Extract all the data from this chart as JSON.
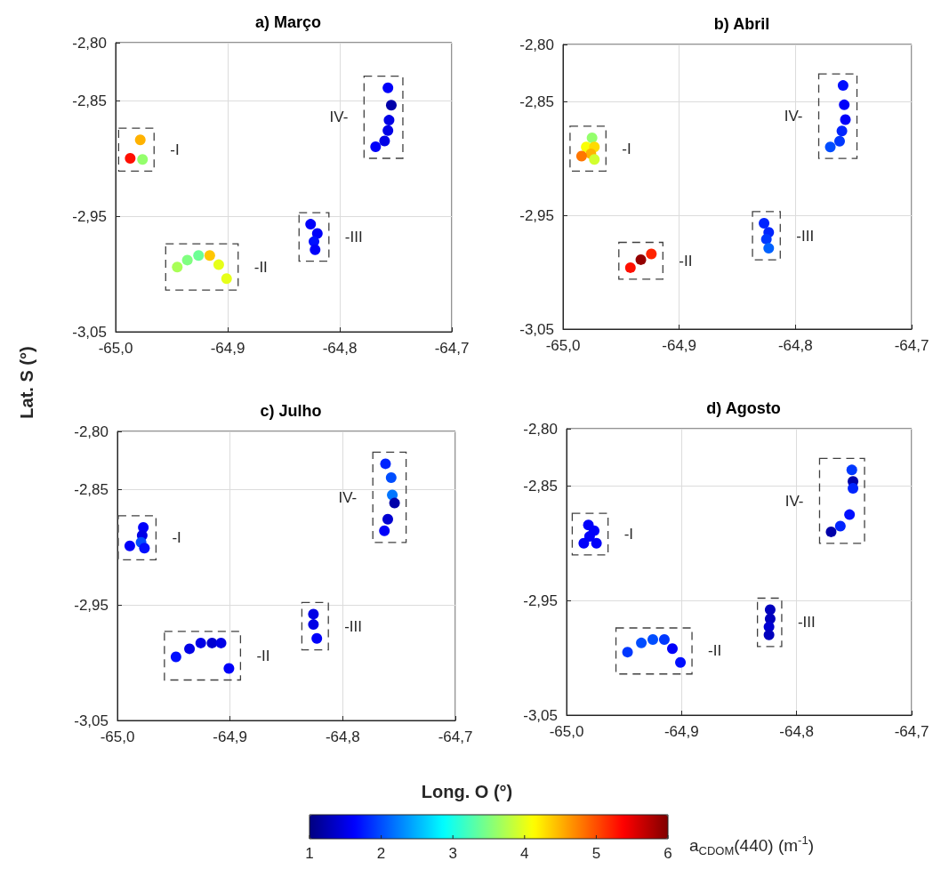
{
  "chart_data": [
    {
      "type": "scatter",
      "title": "a) Março",
      "xlabel": "Long. O (°)",
      "ylabel": "Lat. S (°)",
      "grid": true,
      "marker": "circle",
      "xlim": [
        -65,
        -64.7
      ],
      "ylim": [
        -3.05,
        -2.8
      ],
      "xticks": [
        {
          "value": -65,
          "label": "-65,0"
        },
        {
          "value": -64.9,
          "label": "-64,9"
        },
        {
          "value": -64.8,
          "label": "-64,8"
        },
        {
          "value": -64.7,
          "label": "-64,7"
        }
      ],
      "yticks": [
        {
          "value": -2.8,
          "label": "-2,80"
        },
        {
          "value": -2.85,
          "label": "-2,85"
        },
        {
          "value": -2.95,
          "label": "-2,95"
        },
        {
          "value": -3.05,
          "label": "-3,05"
        }
      ],
      "series": [
        {
          "x": [
            -64.978,
            -64.987,
            -64.976
          ],
          "values": [
            -2.884,
            -2.9,
            -2.901
          ],
          "colors": [
            "#ffb200",
            "#ff0f00",
            "#94ff6c"
          ]
        },
        {
          "x": [
            -64.945,
            -64.936,
            -64.926,
            -64.916,
            -64.908,
            -64.901
          ],
          "values": [
            -2.994,
            -2.988,
            -2.984,
            -2.984,
            -2.992,
            -3.004
          ],
          "colors": [
            "#a9ff57",
            "#80ff80",
            "#6cff94",
            "#ffc700",
            "#e6ff1a",
            "#e6ff1a"
          ]
        },
        {
          "x": [
            -64.826,
            -64.82,
            -64.823,
            -64.822
          ],
          "values": [
            -2.957,
            -2.965,
            -2.972,
            -2.979
          ],
          "colors": [
            "#0000fa",
            "#0000fa",
            "#000fff",
            "#0000fa"
          ]
        },
        {
          "x": [
            -64.757,
            -64.754,
            -64.756,
            -64.757,
            -64.76,
            -64.768
          ],
          "values": [
            -2.839,
            -2.854,
            -2.867,
            -2.876,
            -2.885,
            -2.89
          ],
          "colors": [
            "#0000fa",
            "#0000a9",
            "#0000e6",
            "#0000e6",
            "#0000e6",
            "#0000fa"
          ]
        }
      ],
      "annotations": [
        "-I",
        "-II",
        "-III",
        "IV-"
      ]
    },
    {
      "type": "scatter",
      "title": "b) Abril",
      "grid": true,
      "marker": "circle",
      "xlim": [
        -65,
        -64.7
      ],
      "ylim": [
        -3.05,
        -2.8
      ],
      "xticks": [
        {
          "value": -65,
          "label": "-65,0"
        },
        {
          "value": -64.9,
          "label": "-64,9"
        },
        {
          "value": -64.8,
          "label": "-64,8"
        },
        {
          "value": -64.7,
          "label": "-64,7"
        }
      ],
      "yticks": [
        {
          "value": -2.8,
          "label": "-2,80"
        },
        {
          "value": -2.85,
          "label": "-2,85"
        },
        {
          "value": -2.95,
          "label": "-2,95"
        },
        {
          "value": -3.05,
          "label": "-3,05"
        }
      ],
      "series": [
        {
          "x": [
            -64.975,
            -64.98,
            -64.973,
            -64.976,
            -64.984,
            -64.973
          ],
          "values": [
            -2.882,
            -2.89,
            -2.89,
            -2.896,
            -2.898,
            -2.901
          ],
          "colors": [
            "#94ff6c",
            "#faff05",
            "#ffdb00",
            "#ffb200",
            "#ff7600",
            "#d2ff2e"
          ]
        },
        {
          "x": [
            -64.942,
            -64.933,
            -64.924
          ],
          "values": [
            -2.996,
            -2.989,
            -2.984
          ],
          "colors": [
            "#ff0f00",
            "#940000",
            "#ff2400"
          ]
        },
        {
          "x": [
            -64.827,
            -64.823,
            -64.825,
            -64.823
          ],
          "values": [
            -2.957,
            -2.965,
            -2.971,
            -2.979
          ],
          "colors": [
            "#0024ff",
            "#0024ff",
            "#0038ff",
            "#0061ff"
          ]
        },
        {
          "x": [
            -64.759,
            -64.758,
            -64.757,
            -64.76,
            -64.762,
            -64.77
          ],
          "values": [
            -2.836,
            -2.853,
            -2.866,
            -2.876,
            -2.885,
            -2.89
          ],
          "colors": [
            "#000fff",
            "#0000fa",
            "#0000fa",
            "#0024ff",
            "#0038ff",
            "#004dff"
          ]
        }
      ],
      "annotations": [
        "-I",
        "-II",
        "-III",
        "IV-"
      ]
    },
    {
      "type": "scatter",
      "title": "c) Julho",
      "grid": true,
      "marker": "circle",
      "xlim": [
        -65,
        -64.7
      ],
      "ylim": [
        -3.05,
        -2.8
      ],
      "xticks": [
        {
          "value": -65,
          "label": "-65,0"
        },
        {
          "value": -64.9,
          "label": "-64,9"
        },
        {
          "value": -64.8,
          "label": "-64,8"
        },
        {
          "value": -64.7,
          "label": "-64,7"
        }
      ],
      "yticks": [
        {
          "value": -2.8,
          "label": "-2,80"
        },
        {
          "value": -2.85,
          "label": "-2,85"
        },
        {
          "value": -2.95,
          "label": "-2,95"
        },
        {
          "value": -3.05,
          "label": "-3,05"
        }
      ],
      "series": [
        {
          "x": [
            -64.977,
            -64.978,
            -64.979,
            -64.989,
            -64.976
          ],
          "values": [
            -2.883,
            -2.89,
            -2.896,
            -2.899,
            -2.901
          ],
          "colors": [
            "#0000fa",
            "#0000e6",
            "#004dff",
            "#0000fa",
            "#000fff"
          ]
        },
        {
          "x": [
            -64.948,
            -64.936,
            -64.926,
            -64.916,
            -64.908,
            -64.901
          ],
          "values": [
            -2.995,
            -2.988,
            -2.983,
            -2.983,
            -2.983,
            -3.005
          ],
          "colors": [
            "#000fff",
            "#0000e6",
            "#0000e6",
            "#0000d1",
            "#0000e6",
            "#0000fa"
          ]
        },
        {
          "x": [
            -64.826,
            -64.826,
            -64.823
          ],
          "values": [
            -2.958,
            -2.967,
            -2.979
          ],
          "colors": [
            "#0000e6",
            "#0000e6",
            "#0000fa"
          ]
        },
        {
          "x": [
            -64.762,
            -64.757,
            -64.756,
            -64.754,
            -64.76,
            -64.763
          ],
          "values": [
            -2.828,
            -2.84,
            -2.855,
            -2.862,
            -2.876,
            -2.886
          ],
          "colors": [
            "#0024ff",
            "#004dff",
            "#0076ff",
            "#0000a9",
            "#0000d1",
            "#0000fa"
          ]
        }
      ],
      "annotations": [
        "-I",
        "-II",
        "-III",
        "IV-"
      ]
    },
    {
      "type": "scatter",
      "title": "d) Agosto",
      "clabel": "a$_{CDOM}$(440) (m$^{-1}$)",
      "clim": [
        1,
        6
      ],
      "cticks": [
        1,
        2,
        3,
        4,
        5,
        6
      ],
      "grid": true,
      "marker": "circle",
      "xlim": [
        -65,
        -64.7
      ],
      "ylim": [
        -3.05,
        -2.8
      ],
      "xticks": [
        {
          "value": -65,
          "label": "-65,0"
        },
        {
          "value": -64.9,
          "label": "-64,9"
        },
        {
          "value": -64.8,
          "label": "-64,8"
        },
        {
          "value": -64.7,
          "label": "-64,7"
        }
      ],
      "yticks": [
        {
          "value": -2.8,
          "label": "-2,80"
        },
        {
          "value": -2.85,
          "label": "-2,85"
        },
        {
          "value": -2.95,
          "label": "-2,95"
        },
        {
          "value": -3.05,
          "label": "-3,05"
        }
      ],
      "series": [
        {
          "x": [
            -64.981,
            -64.976,
            -64.98,
            -64.985,
            -64.974
          ],
          "values": [
            -2.884,
            -2.889,
            -2.894,
            -2.9,
            -2.9
          ],
          "colors": [
            "#0000fa",
            "#0000fa",
            "#0000fa",
            "#0000fa",
            "#0000fa"
          ]
        },
        {
          "x": [
            -64.947,
            -64.935,
            -64.925,
            -64.915,
            -64.908,
            -64.901
          ],
          "values": [
            -2.995,
            -2.987,
            -2.984,
            -2.984,
            -2.992,
            -3.004
          ],
          "colors": [
            "#0038ff",
            "#004dff",
            "#004dff",
            "#0038ff",
            "#0000fa",
            "#000fff"
          ]
        },
        {
          "x": [
            -64.823,
            -64.823,
            -64.824,
            -64.824
          ],
          "values": [
            -2.958,
            -2.966,
            -2.973,
            -2.98
          ],
          "colors": [
            "#0000bd",
            "#0000bd",
            "#0000d1",
            "#0000bd"
          ]
        },
        {
          "x": [
            -64.752,
            -64.751,
            -64.751,
            -64.754,
            -64.762,
            -64.77
          ],
          "values": [
            -2.836,
            -2.846,
            -2.852,
            -2.875,
            -2.885,
            -2.89
          ],
          "colors": [
            "#0038ff",
            "#0000a9",
            "#0024ff",
            "#000fff",
            "#0024ff",
            "#0000a9"
          ]
        }
      ],
      "annotations": [
        "-I",
        "-II",
        "-III",
        "IV-"
      ]
    }
  ]
}
